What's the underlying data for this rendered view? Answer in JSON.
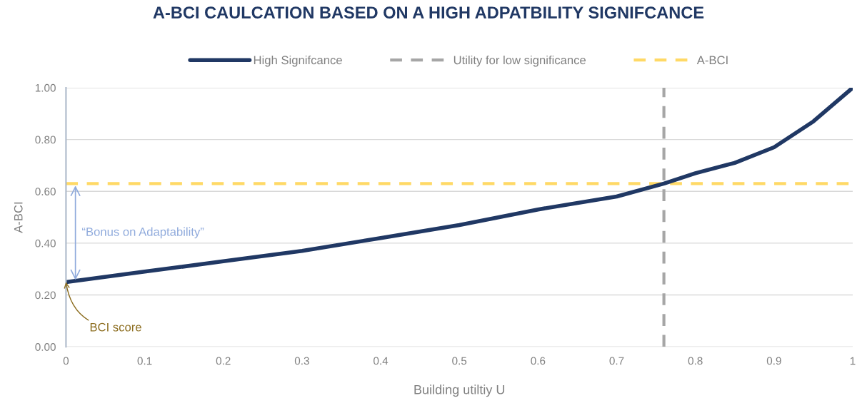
{
  "chart_data": {
    "type": "line",
    "title": "A-BCI CAULCATION BASED ON A HIGH ADPATBILITY SIGNIFCANCE",
    "xlabel": "Building utiltiy U",
    "ylabel": "A-BCI",
    "x": [
      0,
      0.1,
      0.2,
      0.3,
      0.4,
      0.5,
      0.6,
      0.7,
      0.76,
      0.8,
      0.85,
      0.9,
      0.95,
      1
    ],
    "series": [
      {
        "name": "High Signifcance",
        "color": "#203864",
        "values": [
          0.25,
          0.29,
          0.33,
          0.37,
          0.42,
          0.47,
          0.53,
          0.58,
          0.63,
          0.67,
          0.71,
          0.77,
          0.87,
          1.0
        ]
      }
    ],
    "ref_lines": [
      {
        "axis": "x",
        "value": 0.76,
        "label": "Utility for low significance",
        "color": "#a6a6a6",
        "line_style": "dashed"
      },
      {
        "axis": "y",
        "value": 0.63,
        "label": "A-BCI",
        "color": "#ffd966",
        "line_style": "dashed"
      }
    ],
    "annotations": [
      "“Bonus on Adaptability”",
      {
        "text": "BCI score",
        "x": 0,
        "y": 0.25
      }
    ],
    "xlim": [
      0,
      1
    ],
    "ylim": [
      0,
      1
    ],
    "xticks": [
      0,
      0.1,
      0.2,
      0.3,
      0.4,
      0.5,
      0.6,
      0.7,
      0.8,
      0.9,
      1
    ],
    "yticks": [
      {
        "value": 0,
        "label": "0.00"
      },
      {
        "value": 0.2,
        "label": "0.20"
      },
      {
        "value": 0.4,
        "label": "0.40"
      },
      {
        "value": 0.6,
        "label": "0.60"
      },
      {
        "value": 0.8,
        "label": "0.80"
      },
      {
        "value": 1,
        "label": "1.00"
      }
    ],
    "grid": "y",
    "legend": "top",
    "line_style": "solid",
    "marker": "none"
  }
}
